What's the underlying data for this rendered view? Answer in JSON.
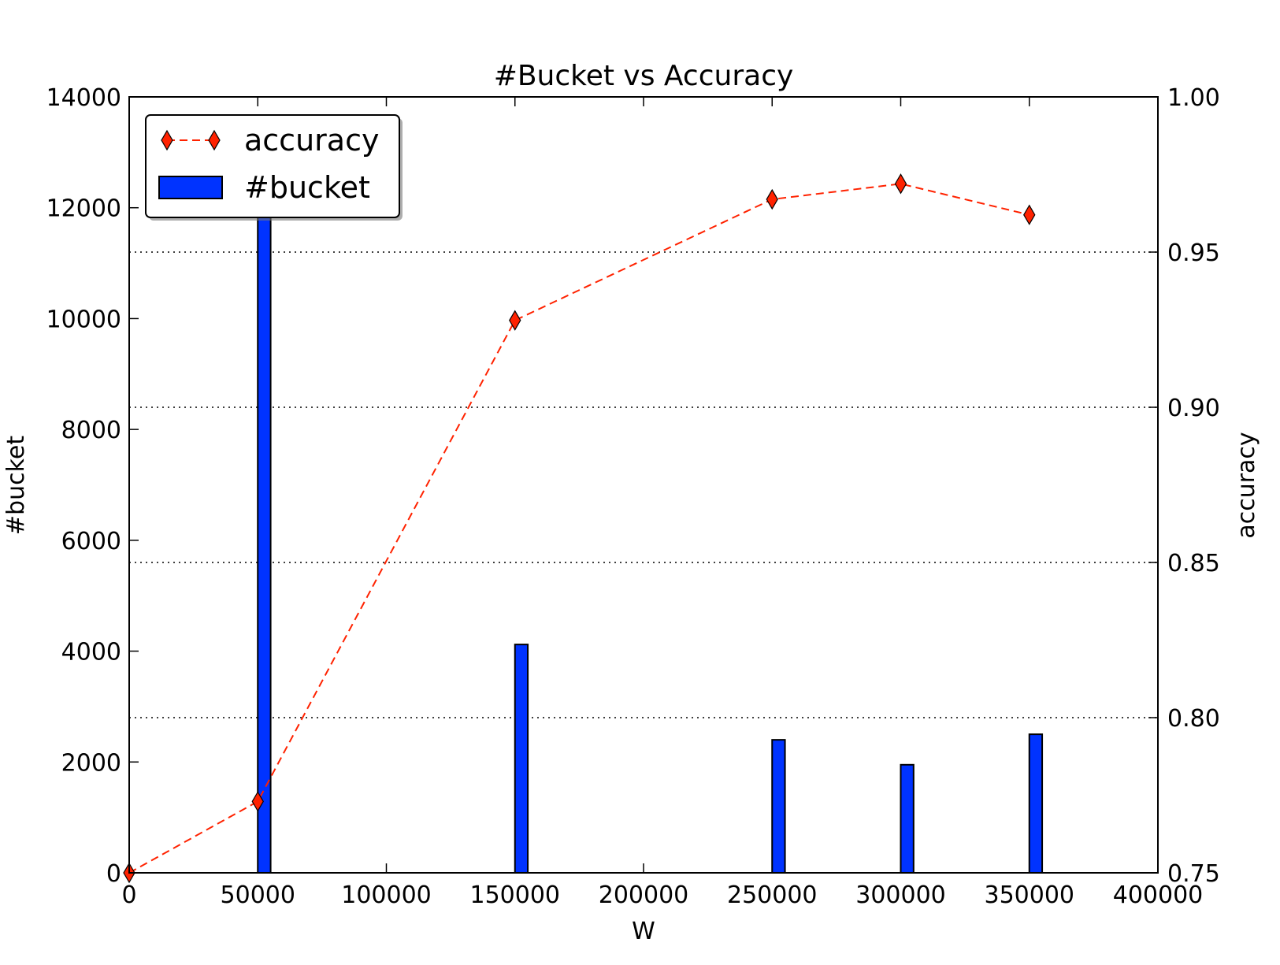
{
  "chart_data": {
    "type": "bar+line",
    "title": "#Bucket vs Accuracy",
    "xlabel": "W",
    "ylabel_left": "#bucket",
    "ylabel_right": "accuracy",
    "xlim": [
      0,
      400000
    ],
    "ylim_left": [
      0,
      14000
    ],
    "ylim_right": [
      0.75,
      1.0
    ],
    "x_ticks": [
      "0",
      "50000",
      "100000",
      "150000",
      "200000",
      "250000",
      "300000",
      "350000",
      "400000"
    ],
    "y_left_ticks": [
      "0",
      "2000",
      "4000",
      "6000",
      "8000",
      "10000",
      "12000",
      "14000"
    ],
    "y_right_ticks": [
      "0.75",
      "0.80",
      "0.85",
      "0.90",
      "0.95",
      "1.00"
    ],
    "grid": "horizontal dotted at right-axis ticks",
    "legend": {
      "position": "top-left",
      "entries": [
        {
          "label": "accuracy",
          "style": "red dashed line with diamond markers"
        },
        {
          "label": "#bucket",
          "style": "blue bar"
        }
      ]
    },
    "series": [
      {
        "name": "#bucket",
        "kind": "bar",
        "axis": "left",
        "color": "#0033ff",
        "x": [
          50000,
          150000,
          250000,
          300000,
          350000
        ],
        "values": [
          12500,
          4120,
          2400,
          1950,
          2500
        ]
      },
      {
        "name": "accuracy",
        "kind": "line",
        "axis": "right",
        "color": "#ff2200",
        "x": [
          0,
          50000,
          150000,
          250000,
          300000,
          350000
        ],
        "values": [
          0.75,
          0.773,
          0.928,
          0.967,
          0.972,
          0.962
        ]
      }
    ]
  }
}
